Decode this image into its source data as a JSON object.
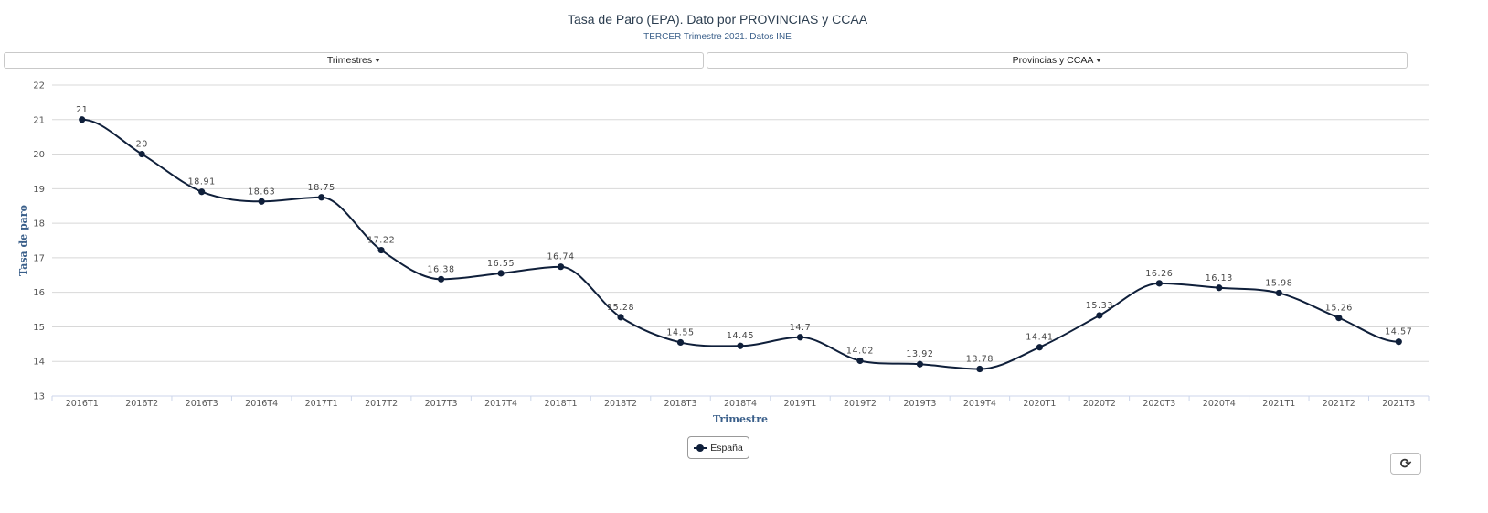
{
  "header": {
    "title": "Tasa de Paro (EPA). Dato por PROVINCIAS y CCAA",
    "subtitle": "TERCER Trimestre 2021. Datos INE"
  },
  "filters": {
    "period_label": "Trimestres",
    "region_label": "Provincias y CCAA"
  },
  "controls": {
    "refresh_icon": "refresh-icon",
    "refresh_glyph": "⟳"
  },
  "chart_data": {
    "type": "line",
    "title": "",
    "xlabel": "Trimestre",
    "ylabel": "Tasa de paro",
    "ylim": [
      13,
      22
    ],
    "yticks": [
      13,
      14,
      15,
      16,
      17,
      18,
      19,
      20,
      21,
      22
    ],
    "grid": true,
    "legend_position": "bottom-center",
    "categories": [
      "2016T1",
      "2016T2",
      "2016T3",
      "2016T4",
      "2017T1",
      "2017T2",
      "2017T3",
      "2017T4",
      "2018T1",
      "2018T2",
      "2018T3",
      "2018T4",
      "2019T1",
      "2019T2",
      "2019T3",
      "2019T4",
      "2020T1",
      "2020T2",
      "2020T3",
      "2020T4",
      "2021T1",
      "2021T2",
      "2021T3"
    ],
    "series": [
      {
        "name": "España",
        "color": "#0f1f3a",
        "values": [
          21,
          20,
          18.91,
          18.63,
          18.75,
          17.22,
          16.38,
          16.55,
          16.74,
          15.28,
          14.55,
          14.45,
          14.7,
          14.02,
          13.92,
          13.78,
          14.41,
          15.33,
          16.26,
          16.13,
          15.98,
          15.26,
          14.57
        ]
      }
    ]
  }
}
